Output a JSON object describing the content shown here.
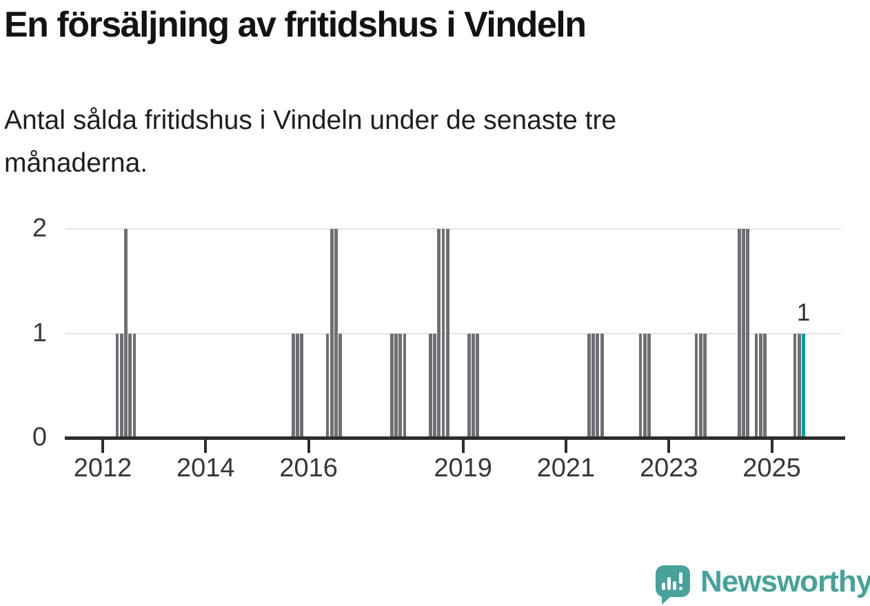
{
  "chart": {
    "title": "En försäljning av fritidshus i Vindeln",
    "subtitle": "Antal sålda fritidshus i Vindeln under de senaste tre månaderna.",
    "subtitle_lines": [
      "Antal sålda fritidshus i Vindeln under de senaste tre",
      "månaderna."
    ]
  },
  "colors": {
    "background": "#ffffff",
    "title_text": "#131313",
    "subtitle_text": "#1e1e1e",
    "axis_line": "#2d2d2d",
    "gridline": "#e4e4e4",
    "tick_label": "#363636",
    "bar_gray": "#6e6e74",
    "bar_highlight_teal": "#00a09c",
    "logo_teal": "#46a29b"
  },
  "branding": {
    "wordmark": "Newsworthy",
    "logo_icon": "speech-bubble-bar-chart-exclamation"
  },
  "chart_data": {
    "type": "bar",
    "title": "En försäljning av fritidshus i Vindeln",
    "subtitle": "Antal sålda fritidshus i Vindeln under de senaste tre månaderna.",
    "x_unit": "month",
    "xlabel": "",
    "ylabel": "",
    "ylim": [
      0,
      2
    ],
    "yticks": [
      0,
      1,
      2
    ],
    "xticks": [
      2012,
      2014,
      2016,
      2019,
      2021,
      2023,
      2025
    ],
    "x_range_years": [
      2011.3,
      2026.4
    ],
    "grid": "horizontal",
    "legend": "none",
    "bars": [
      {
        "month": "2012-04",
        "value": 1
      },
      {
        "month": "2012-05",
        "value": 1
      },
      {
        "month": "2012-06",
        "value": 2
      },
      {
        "month": "2012-07",
        "value": 1
      },
      {
        "month": "2012-08",
        "value": 1
      },
      {
        "month": "2015-09",
        "value": 1
      },
      {
        "month": "2015-10",
        "value": 1
      },
      {
        "month": "2015-11",
        "value": 1
      },
      {
        "month": "2016-05",
        "value": 1
      },
      {
        "month": "2016-06",
        "value": 2
      },
      {
        "month": "2016-07",
        "value": 2
      },
      {
        "month": "2016-08",
        "value": 1
      },
      {
        "month": "2017-08",
        "value": 1
      },
      {
        "month": "2017-09",
        "value": 1
      },
      {
        "month": "2017-10",
        "value": 1
      },
      {
        "month": "2017-11",
        "value": 1
      },
      {
        "month": "2018-05",
        "value": 1
      },
      {
        "month": "2018-06",
        "value": 1
      },
      {
        "month": "2018-07",
        "value": 2
      },
      {
        "month": "2018-08",
        "value": 2
      },
      {
        "month": "2018-09",
        "value": 2
      },
      {
        "month": "2019-02",
        "value": 1
      },
      {
        "month": "2019-03",
        "value": 1
      },
      {
        "month": "2019-04",
        "value": 1
      },
      {
        "month": "2021-06",
        "value": 1
      },
      {
        "month": "2021-07",
        "value": 1
      },
      {
        "month": "2021-08",
        "value": 1
      },
      {
        "month": "2021-09",
        "value": 1
      },
      {
        "month": "2022-06",
        "value": 1
      },
      {
        "month": "2022-07",
        "value": 1
      },
      {
        "month": "2022-08",
        "value": 1
      },
      {
        "month": "2023-07",
        "value": 1
      },
      {
        "month": "2023-08",
        "value": 1
      },
      {
        "month": "2023-09",
        "value": 1
      },
      {
        "month": "2024-05",
        "value": 2
      },
      {
        "month": "2024-06",
        "value": 2
      },
      {
        "month": "2024-07",
        "value": 2
      },
      {
        "month": "2024-09",
        "value": 1
      },
      {
        "month": "2024-10",
        "value": 1
      },
      {
        "month": "2024-11",
        "value": 1
      },
      {
        "month": "2025-06",
        "value": 1
      },
      {
        "month": "2025-07",
        "value": 1
      },
      {
        "month": "2025-08",
        "value": 1
      }
    ],
    "highlight": {
      "month": "2025-08",
      "value": 1,
      "label": "1"
    }
  }
}
